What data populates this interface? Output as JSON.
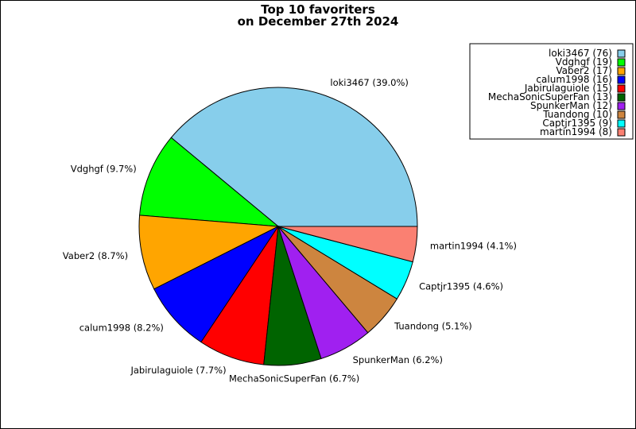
{
  "chart_data": {
    "type": "pie",
    "title": "Top 10 favoriters",
    "subtitle": "on December 27th 2024",
    "legend_position": "top-right",
    "slices": [
      {
        "name": "loki3467",
        "value": 76,
        "percent": "39.0%",
        "color": "#87CEEB",
        "legend_label": "loki3467 (76)",
        "label": "loki3467 (39.0%)"
      },
      {
        "name": "Vdghgf",
        "value": 19,
        "percent": "9.7%",
        "color": "#00FF00",
        "legend_label": "Vdghgf (19)",
        "label": "Vdghgf (9.7%)"
      },
      {
        "name": "Vaber2",
        "value": 17,
        "percent": "8.7%",
        "color": "#FFA500",
        "legend_label": "Vaber2 (17)",
        "label": "Vaber2 (8.7%)"
      },
      {
        "name": "calum1998",
        "value": 16,
        "percent": "8.2%",
        "color": "#0000FF",
        "legend_label": "calum1998 (16)",
        "label": "calum1998 (8.2%)"
      },
      {
        "name": "Jabirulaguiole",
        "value": 15,
        "percent": "7.7%",
        "color": "#FF0000",
        "legend_label": "Jabirulaguiole (15)",
        "label": "Jabirulaguiole (7.7%)"
      },
      {
        "name": "MechaSonicSuperFan",
        "value": 13,
        "percent": "6.7%",
        "color": "#006400",
        "legend_label": "MechaSonicSuperFan (13)",
        "label": "MechaSonicSuperFan (6.7%)"
      },
      {
        "name": "SpunkerMan",
        "value": 12,
        "percent": "6.2%",
        "color": "#A020F0",
        "legend_label": "SpunkerMan (12)",
        "label": "SpunkerMan (6.2%)"
      },
      {
        "name": "Tuandong",
        "value": 10,
        "percent": "5.1%",
        "color": "#CD853F",
        "legend_label": "Tuandong (10)",
        "label": "Tuandong (5.1%)"
      },
      {
        "name": "Captjr1395",
        "value": 9,
        "percent": "4.6%",
        "color": "#00FFFF",
        "legend_label": "Captjr1395 (9)",
        "label": "Captjr1395 (4.6%)"
      },
      {
        "name": "martin1994",
        "value": 8,
        "percent": "4.1%",
        "color": "#FA8072",
        "legend_label": "martin1994 (8)",
        "label": "martin1994 (8)"
      }
    ]
  }
}
